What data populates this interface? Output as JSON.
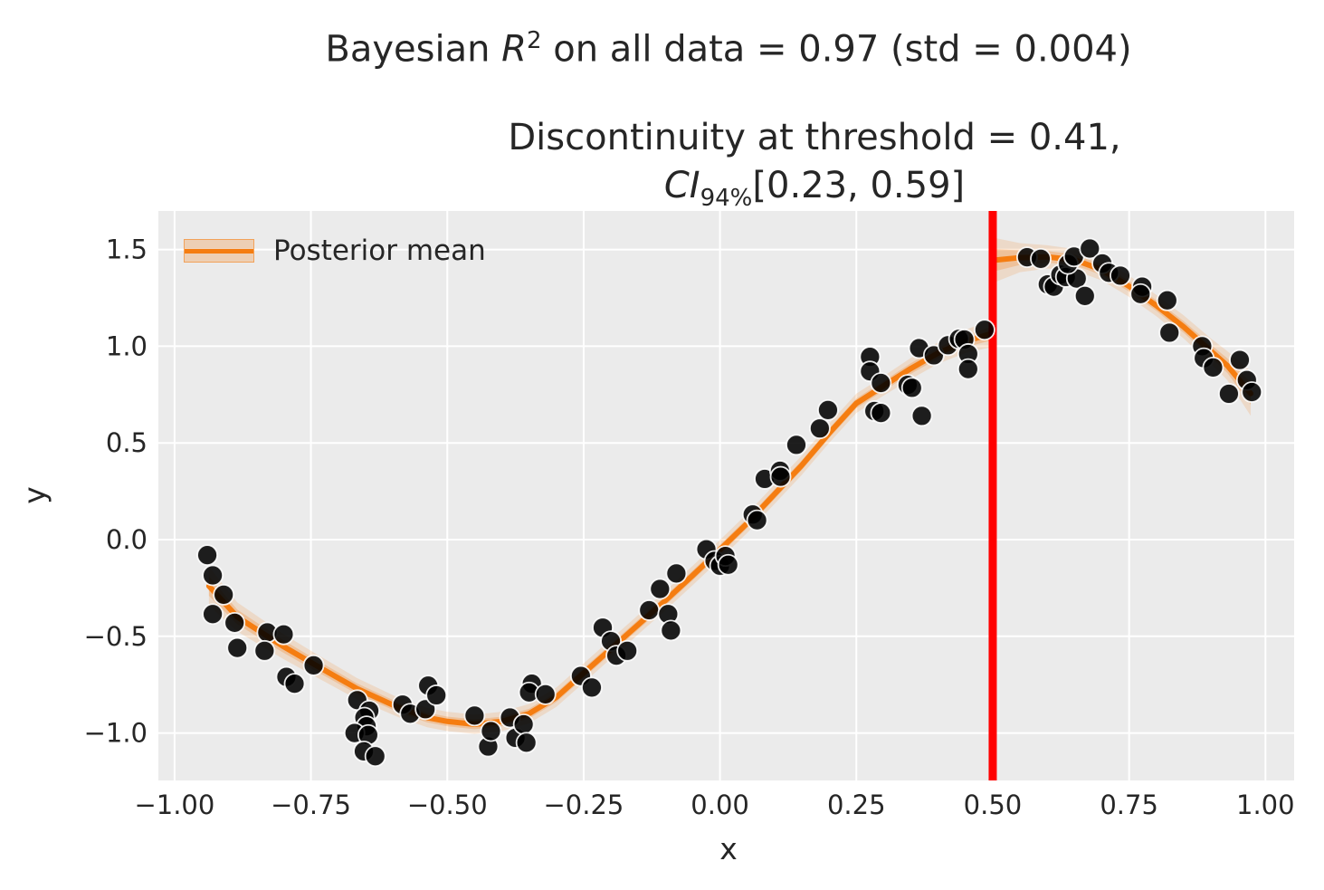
{
  "figure": {
    "title": {
      "prefix": "Bayesian ",
      "var": "R",
      "sup": "2",
      "rest": " on all data = 0.97 (std = 0.004)"
    },
    "subtitle": {
      "line1": "Discontinuity at threshold = 0.41,",
      "ci_var": "CI",
      "ci_sub": "94%",
      "ci_rest": "[0.23, 0.59]"
    }
  },
  "axes": {
    "xlabel": "x",
    "ylabel": "y"
  },
  "legend": {
    "label": "Posterior mean",
    "position": "upper left"
  },
  "colors": {
    "plot_background": "#ebebeb",
    "grid": "#ffffff",
    "posterior_mean": "#f57d11",
    "credible_band": "#f57d11",
    "threshold_line": "#ff0000",
    "scatter": "#000000",
    "scatter_edge": "#ffffff",
    "text": "#262626"
  },
  "chart_data": {
    "type": "scatter",
    "title": "Bayesian R^2 on all data = 0.97 (std = 0.004)",
    "subtitle": "Discontinuity at threshold = 0.41, CI_94% [0.23, 0.59]",
    "xlabel": "x",
    "ylabel": "y",
    "xlim": [
      -1.03,
      1.05
    ],
    "ylim": [
      -1.25,
      1.7
    ],
    "grid": true,
    "xticks": [
      -1.0,
      -0.75,
      -0.5,
      -0.25,
      0.0,
      0.25,
      0.5,
      0.75,
      1.0
    ],
    "xtick_labels": [
      "−1.00",
      "−0.75",
      "−0.50",
      "−0.25",
      "0.00",
      "0.25",
      "0.50",
      "0.75",
      "1.00"
    ],
    "yticks": [
      1.5,
      1.0,
      0.5,
      0.0,
      -0.5,
      -1.0
    ],
    "ytick_labels": [
      "1.5",
      "1.0",
      "0.5",
      "0.0",
      "−0.5",
      "−1.0"
    ],
    "threshold_line": {
      "x": 0.5,
      "color": "#ff0000"
    },
    "legend_entries": [
      "Posterior mean"
    ],
    "posterior_mean_left": {
      "x": [
        -0.937,
        -0.885,
        -0.802,
        -0.744,
        -0.666,
        -0.588,
        -0.537,
        -0.5,
        -0.45,
        -0.4,
        -0.35,
        -0.3,
        -0.25,
        -0.2,
        -0.15,
        -0.1,
        -0.05,
        0.0,
        0.05,
        0.1,
        0.15,
        0.2,
        0.25,
        0.3,
        0.35,
        0.4,
        0.45,
        0.497
      ],
      "y": [
        -0.24,
        -0.4,
        -0.55,
        -0.645,
        -0.77,
        -0.87,
        -0.92,
        -0.94,
        -0.955,
        -0.94,
        -0.9,
        -0.815,
        -0.69,
        -0.565,
        -0.44,
        -0.315,
        -0.185,
        -0.052,
        0.085,
        0.235,
        0.385,
        0.55,
        0.705,
        0.795,
        0.885,
        0.965,
        1.025,
        1.065
      ],
      "band_halfwidth": [
        0.1,
        0.075,
        0.065,
        0.06,
        0.055,
        0.05,
        0.05,
        0.05,
        0.05,
        0.05,
        0.05,
        0.05,
        0.05,
        0.05,
        0.05,
        0.05,
        0.05,
        0.05,
        0.05,
        0.05,
        0.05,
        0.05,
        0.05,
        0.05,
        0.055,
        0.055,
        0.06,
        0.07
      ]
    },
    "posterior_mean_right": {
      "x": [
        0.503,
        0.55,
        0.6,
        0.65,
        0.7,
        0.75,
        0.8,
        0.85,
        0.9,
        0.93,
        0.973
      ],
      "y": [
        1.445,
        1.458,
        1.462,
        1.447,
        1.395,
        1.31,
        1.21,
        1.1,
        0.975,
        0.9,
        0.755
      ],
      "band_halfwidth": [
        0.115,
        0.075,
        0.06,
        0.055,
        0.055,
        0.055,
        0.055,
        0.06,
        0.065,
        0.075,
        0.115
      ]
    },
    "scatter_points": [
      [
        -0.94,
        -0.08
      ],
      [
        -0.93,
        -0.185
      ],
      [
        -0.91,
        -0.285
      ],
      [
        -0.93,
        -0.385
      ],
      [
        -0.89,
        -0.43
      ],
      [
        -0.885,
        -0.56
      ],
      [
        -0.83,
        -0.48
      ],
      [
        -0.8,
        -0.49
      ],
      [
        -0.835,
        -0.575
      ],
      [
        -0.745,
        -0.65
      ],
      [
        -0.795,
        -0.71
      ],
      [
        -0.78,
        -0.745
      ],
      [
        -0.665,
        -0.83
      ],
      [
        -0.643,
        -0.885
      ],
      [
        -0.652,
        -0.92
      ],
      [
        -0.648,
        -0.965
      ],
      [
        -0.67,
        -1.0
      ],
      [
        -0.645,
        -1.01
      ],
      [
        -0.653,
        -1.095
      ],
      [
        -0.632,
        -1.12
      ],
      [
        -0.582,
        -0.853
      ],
      [
        -0.568,
        -0.9
      ],
      [
        -0.54,
        -0.877
      ],
      [
        -0.535,
        -0.755
      ],
      [
        -0.52,
        -0.805
      ],
      [
        -0.45,
        -0.91
      ],
      [
        -0.425,
        -1.07
      ],
      [
        -0.42,
        -0.99
      ],
      [
        -0.385,
        -0.92
      ],
      [
        -0.375,
        -1.025
      ],
      [
        -0.36,
        -0.955
      ],
      [
        -0.355,
        -1.05
      ],
      [
        -0.345,
        -0.745
      ],
      [
        -0.35,
        -0.79
      ],
      [
        -0.32,
        -0.8
      ],
      [
        -0.255,
        -0.705
      ],
      [
        -0.235,
        -0.765
      ],
      [
        -0.215,
        -0.455
      ],
      [
        -0.2,
        -0.525
      ],
      [
        -0.19,
        -0.6
      ],
      [
        -0.17,
        -0.575
      ],
      [
        -0.13,
        -0.365
      ],
      [
        -0.11,
        -0.255
      ],
      [
        -0.095,
        -0.385
      ],
      [
        -0.09,
        -0.47
      ],
      [
        -0.08,
        -0.175
      ],
      [
        -0.025,
        -0.05
      ],
      [
        -0.01,
        -0.11
      ],
      [
        0.0,
        -0.135
      ],
      [
        0.01,
        -0.085
      ],
      [
        0.015,
        -0.13
      ],
      [
        0.06,
        0.13
      ],
      [
        0.068,
        0.1
      ],
      [
        0.082,
        0.314
      ],
      [
        0.11,
        0.356
      ],
      [
        0.111,
        0.325
      ],
      [
        0.14,
        0.49
      ],
      [
        0.183,
        0.575
      ],
      [
        0.198,
        0.67
      ],
      [
        0.275,
        0.945
      ],
      [
        0.275,
        0.87
      ],
      [
        0.295,
        0.81
      ],
      [
        0.283,
        0.665
      ],
      [
        0.295,
        0.655
      ],
      [
        0.344,
        0.8
      ],
      [
        0.352,
        0.785
      ],
      [
        0.365,
        0.99
      ],
      [
        0.37,
        0.64
      ],
      [
        0.392,
        0.953
      ],
      [
        0.418,
        1.005
      ],
      [
        0.438,
        1.038
      ],
      [
        0.448,
        1.035
      ],
      [
        0.455,
        0.96
      ],
      [
        0.455,
        0.882
      ],
      [
        0.485,
        1.085
      ],
      [
        0.563,
        1.46
      ],
      [
        0.588,
        1.452
      ],
      [
        0.601,
        1.32
      ],
      [
        0.612,
        1.308
      ],
      [
        0.624,
        1.37
      ],
      [
        0.634,
        1.358
      ],
      [
        0.654,
        1.35
      ],
      [
        0.638,
        1.425
      ],
      [
        0.649,
        1.464
      ],
      [
        0.678,
        1.505
      ],
      [
        0.669,
        1.26
      ],
      [
        0.701,
        1.428
      ],
      [
        0.713,
        1.38
      ],
      [
        0.734,
        1.365
      ],
      [
        0.774,
        1.308
      ],
      [
        0.771,
        1.27
      ],
      [
        0.82,
        1.237
      ],
      [
        0.824,
        1.07
      ],
      [
        0.884,
        1.0
      ],
      [
        0.887,
        0.938
      ],
      [
        0.904,
        0.89
      ],
      [
        0.933,
        0.754
      ],
      [
        0.953,
        0.929
      ],
      [
        0.966,
        0.825
      ],
      [
        0.975,
        0.763
      ]
    ]
  }
}
